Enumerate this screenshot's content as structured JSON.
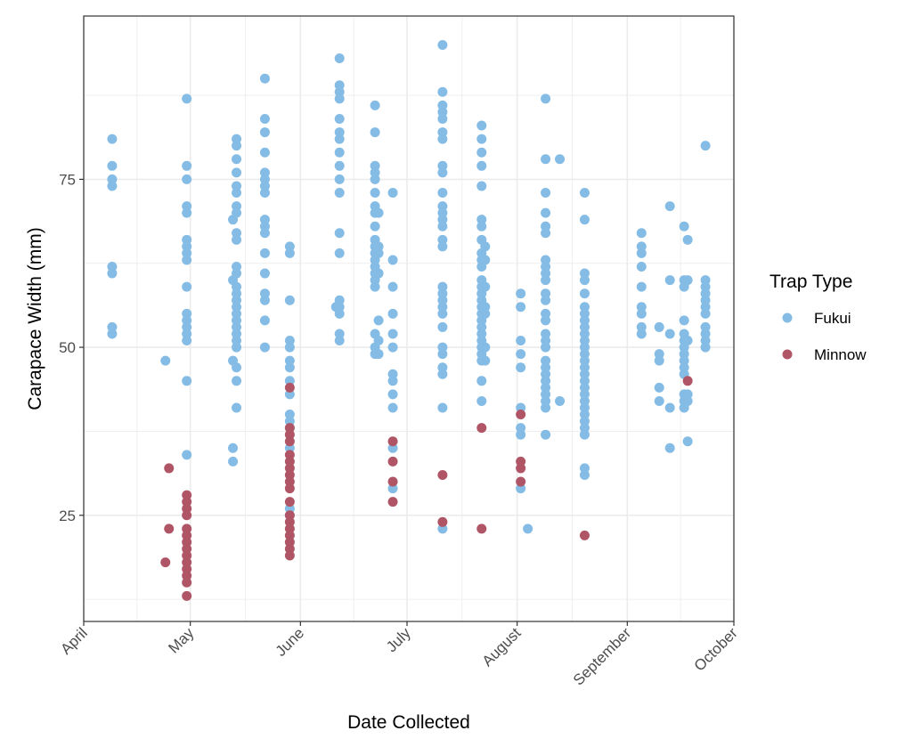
{
  "chart_data": {
    "type": "scatter",
    "title": "",
    "xlabel": "Date Collected",
    "ylabel": "Carapace Width (mm)",
    "ylim": [
      9.2,
      99.3
    ],
    "xlim": [
      "04-01",
      "10-01"
    ],
    "yticks": [
      25,
      50,
      75
    ],
    "xticks": [
      {
        "date": "04-01",
        "label": "April"
      },
      {
        "date": "05-01",
        "label": "May"
      },
      {
        "date": "06-01",
        "label": "June"
      },
      {
        "date": "07-01",
        "label": "July"
      },
      {
        "date": "08-01",
        "label": "August"
      },
      {
        "date": "09-01",
        "label": "September"
      },
      {
        "date": "10-01",
        "label": "October"
      }
    ],
    "grid": true,
    "legend": {
      "title": "Trap Type",
      "placement": "right"
    },
    "series": [
      {
        "name": "Fukui",
        "color": "#85BCE5",
        "points": [
          {
            "date": "04-09",
            "y": [
              81,
              77,
              75,
              74,
              62,
              61,
              53,
              52
            ]
          },
          {
            "date": "04-24",
            "y": [
              48
            ]
          },
          {
            "date": "04-30",
            "y": [
              87,
              77,
              75,
              71,
              70,
              66,
              65,
              64,
              63,
              59,
              55,
              54,
              53,
              52,
              51,
              45,
              34
            ]
          },
          {
            "date": "05-13",
            "y": [
              69,
              60,
              48,
              35,
              33
            ]
          },
          {
            "date": "05-14",
            "y": [
              81,
              80,
              78,
              76,
              74,
              73,
              71,
              70,
              67,
              66,
              62,
              61,
              59,
              58,
              57,
              56,
              55,
              54,
              53,
              52,
              51,
              50,
              47,
              45,
              41
            ]
          },
          {
            "date": "05-22",
            "y": [
              90,
              84,
              82,
              79,
              76,
              75,
              74,
              73,
              69,
              68,
              67,
              64,
              61,
              58,
              57,
              54,
              50
            ]
          },
          {
            "date": "05-29",
            "y": [
              65,
              64,
              57,
              51,
              50,
              48,
              47,
              45,
              43,
              40,
              39,
              38,
              35,
              26,
              25
            ]
          },
          {
            "date": "06-11",
            "y": [
              56
            ]
          },
          {
            "date": "06-12",
            "y": [
              93,
              89,
              88,
              87,
              84,
              82,
              81,
              79,
              77,
              75,
              73,
              67,
              64,
              57,
              56,
              55,
              52,
              51
            ]
          },
          {
            "date": "06-22",
            "y": [
              86,
              82,
              77,
              76,
              75,
              73,
              71,
              70,
              68,
              66,
              65,
              64,
              63,
              62,
              61,
              60,
              59,
              52,
              50,
              49
            ]
          },
          {
            "date": "06-23",
            "y": [
              70,
              65,
              64,
              61,
              54,
              51,
              49
            ]
          },
          {
            "date": "06-27",
            "y": [
              73,
              63,
              59,
              55,
              52,
              50,
              46,
              45,
              43,
              41,
              35,
              29
            ]
          },
          {
            "date": "07-11",
            "y": [
              95,
              88,
              86,
              85,
              84,
              82,
              81,
              77,
              76,
              73,
              71,
              70,
              69,
              68,
              66,
              65,
              59,
              58,
              57,
              56,
              55,
              53,
              50,
              49,
              47,
              46,
              41,
              23
            ]
          },
          {
            "date": "07-22",
            "y": [
              83,
              81,
              79,
              77,
              74,
              69,
              68,
              66,
              64,
              63,
              62,
              60,
              59,
              58,
              57,
              56,
              55,
              54,
              53,
              52,
              51,
              50,
              49,
              48,
              45,
              42
            ]
          },
          {
            "date": "07-23",
            "y": [
              65,
              63,
              59,
              56,
              55,
              50,
              48
            ]
          },
          {
            "date": "08-02",
            "y": [
              58,
              56,
              51,
              49,
              47,
              41,
              38,
              37,
              29
            ]
          },
          {
            "date": "08-04",
            "y": [
              23
            ]
          },
          {
            "date": "08-09",
            "y": [
              87,
              78,
              73,
              70,
              68,
              67,
              63,
              62,
              61,
              60,
              58,
              57,
              55,
              54,
              52,
              51,
              50,
              48,
              47,
              46,
              45,
              44,
              43,
              42,
              41,
              37
            ]
          },
          {
            "date": "08-13",
            "y": [
              78,
              42
            ]
          },
          {
            "date": "08-20",
            "y": [
              73,
              69,
              61,
              60,
              58,
              56,
              55,
              54,
              53,
              52,
              51,
              50,
              49,
              48,
              47,
              46,
              45,
              44,
              43,
              42,
              41,
              40,
              39,
              38,
              37,
              32,
              31
            ]
          },
          {
            "date": "09-05",
            "y": [
              67,
              65,
              64,
              62,
              59,
              56,
              55,
              53,
              52
            ]
          },
          {
            "date": "09-10",
            "y": [
              53,
              49,
              48,
              44,
              42
            ]
          },
          {
            "date": "09-13",
            "y": [
              71,
              60,
              52,
              41,
              35
            ]
          },
          {
            "date": "09-17",
            "y": [
              68,
              60,
              59,
              54,
              52,
              51,
              50,
              49,
              48,
              47,
              46,
              43,
              42,
              41
            ]
          },
          {
            "date": "09-18",
            "y": [
              66,
              60,
              51,
              43,
              42,
              36
            ]
          },
          {
            "date": "09-23",
            "y": [
              80,
              60,
              59,
              58,
              57,
              56,
              55,
              53,
              52,
              51,
              50
            ]
          }
        ]
      },
      {
        "name": "Minnow",
        "color": "#B05566",
        "points": [
          {
            "date": "04-24",
            "y": [
              18
            ]
          },
          {
            "date": "04-25",
            "y": [
              32,
              23
            ]
          },
          {
            "date": "04-30",
            "y": [
              28,
              27,
              26,
              25,
              23,
              22,
              21,
              20,
              19,
              18,
              17,
              16,
              15,
              13
            ]
          },
          {
            "date": "05-29",
            "y": [
              44,
              38,
              37,
              36,
              34,
              33,
              32,
              31,
              30,
              29,
              27,
              25,
              24,
              23,
              22,
              21,
              20,
              19
            ]
          },
          {
            "date": "06-27",
            "y": [
              36,
              33,
              30,
              27
            ]
          },
          {
            "date": "07-11",
            "y": [
              31,
              24
            ]
          },
          {
            "date": "07-22",
            "y": [
              38,
              23
            ]
          },
          {
            "date": "08-02",
            "y": [
              40,
              33,
              32,
              30
            ]
          },
          {
            "date": "08-20",
            "y": [
              22
            ]
          },
          {
            "date": "09-18",
            "y": [
              45
            ]
          }
        ]
      }
    ]
  }
}
